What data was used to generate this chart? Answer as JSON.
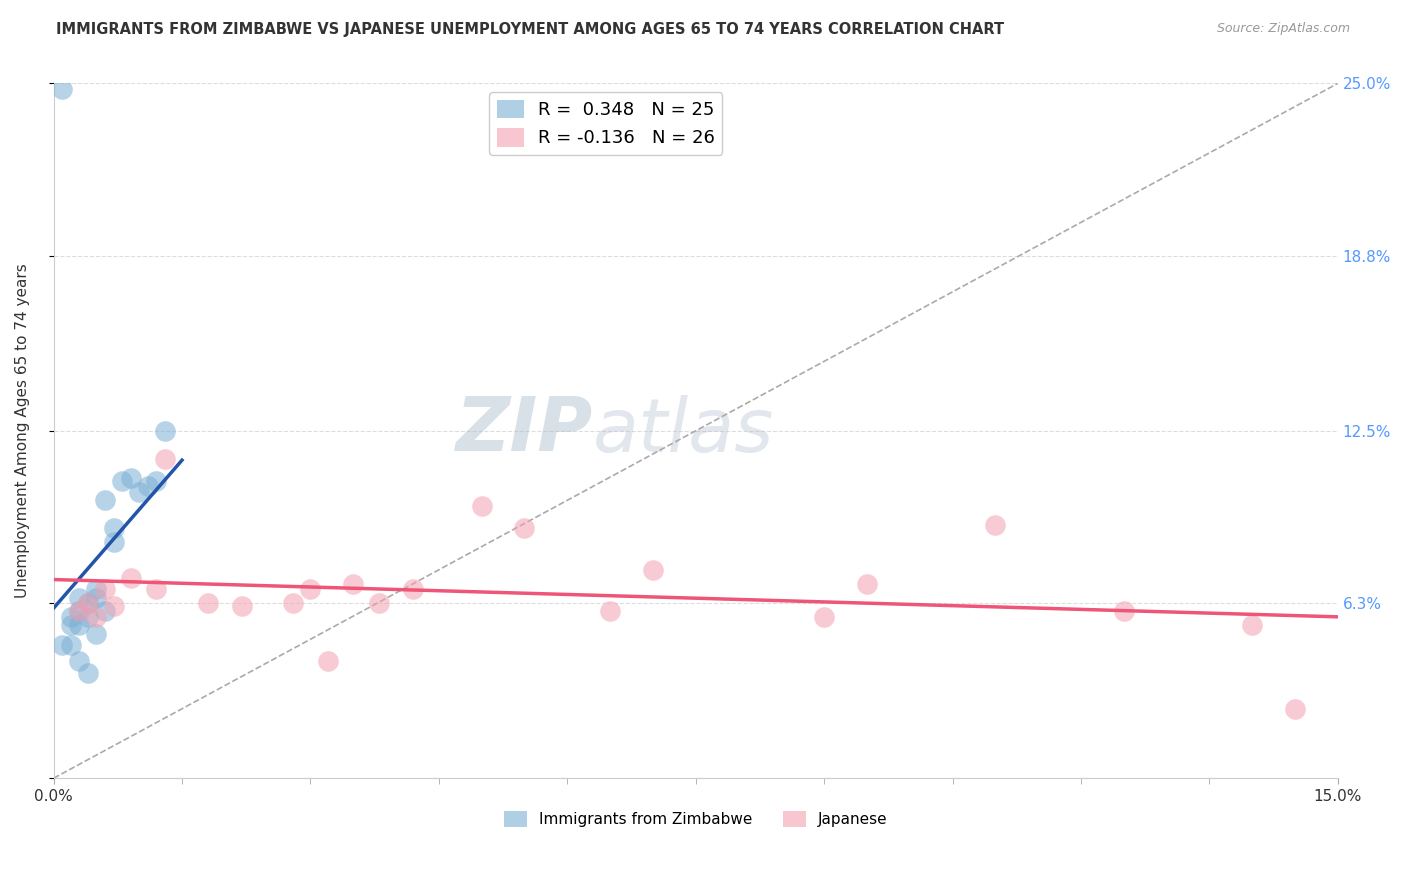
{
  "title": "IMMIGRANTS FROM ZIMBABWE VS JAPANESE UNEMPLOYMENT AMONG AGES 65 TO 74 YEARS CORRELATION CHART",
  "source": "Source: ZipAtlas.com",
  "ylabel": "Unemployment Among Ages 65 to 74 years",
  "xlim": [
    0.0,
    0.15
  ],
  "ylim": [
    0.0,
    0.25
  ],
  "yticks_right": [
    0.0,
    0.063,
    0.125,
    0.188,
    0.25
  ],
  "ytick_labels_right": [
    "",
    "6.3%",
    "12.5%",
    "18.8%",
    "25.0%"
  ],
  "xticks": [
    0.0,
    0.15
  ],
  "xtick_labels": [
    "0.0%",
    "15.0%"
  ],
  "legend_blue_label": "R =  0.348   N = 25",
  "legend_pink_label": "R = -0.136   N = 26",
  "legend_label_blue": "Immigrants from Zimbabwe",
  "legend_label_pink": "Japanese",
  "blue_color": "#7BAFD4",
  "pink_color": "#F4A0B0",
  "blue_line_color": "#2255AA",
  "pink_line_color": "#EE5577",
  "watermark": "ZIPatlas",
  "background_color": "#FFFFFF",
  "grid_color": "#DDDDDD",
  "blue_scatter_x": [
    0.002,
    0.003,
    0.003,
    0.004,
    0.004,
    0.005,
    0.005,
    0.005,
    0.006,
    0.006,
    0.007,
    0.007,
    0.008,
    0.009,
    0.01,
    0.011,
    0.012,
    0.013,
    0.001,
    0.002,
    0.003,
    0.004,
    0.002,
    0.003,
    0.001
  ],
  "blue_scatter_y": [
    0.055,
    0.065,
    0.06,
    0.063,
    0.058,
    0.065,
    0.068,
    0.052,
    0.06,
    0.1,
    0.085,
    0.09,
    0.107,
    0.108,
    0.103,
    0.105,
    0.107,
    0.125,
    0.248,
    0.048,
    0.042,
    0.038,
    0.058,
    0.055,
    0.048
  ],
  "pink_scatter_x": [
    0.003,
    0.004,
    0.005,
    0.006,
    0.007,
    0.009,
    0.012,
    0.013,
    0.018,
    0.022,
    0.028,
    0.03,
    0.032,
    0.035,
    0.038,
    0.042,
    0.05,
    0.055,
    0.065,
    0.07,
    0.09,
    0.095,
    0.11,
    0.125,
    0.14,
    0.145
  ],
  "pink_scatter_y": [
    0.06,
    0.063,
    0.058,
    0.068,
    0.062,
    0.072,
    0.068,
    0.115,
    0.063,
    0.062,
    0.063,
    0.068,
    0.042,
    0.07,
    0.063,
    0.068,
    0.098,
    0.09,
    0.06,
    0.075,
    0.058,
    0.07,
    0.091,
    0.06,
    0.055,
    0.025
  ],
  "blue_line_xlim": [
    0.0,
    0.015
  ],
  "pink_line_xlim": [
    0.0,
    0.15
  ]
}
